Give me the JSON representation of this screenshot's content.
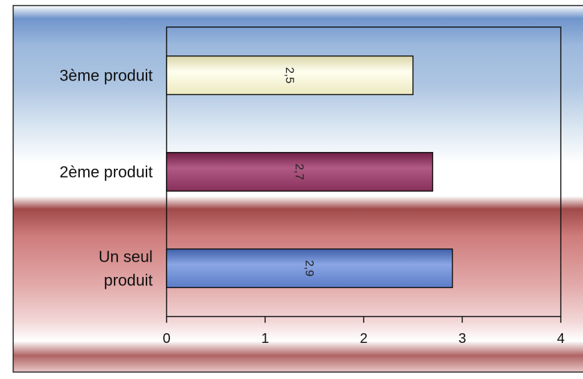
{
  "chart_data": {
    "type": "bar",
    "orientation": "horizontal",
    "categories": [
      "Un seul produit",
      "2ème produit",
      "3ème produit"
    ],
    "category_label_lines": [
      [
        "Un seul",
        "produit"
      ],
      [
        "2ème produit"
      ],
      [
        "3ème produit"
      ]
    ],
    "values": [
      2.9,
      2.7,
      2.5
    ],
    "value_labels": [
      "2,9",
      "2,7",
      "2,5"
    ],
    "bar_colors": [
      "#6f8ed8",
      "#993366",
      "#ffffcc"
    ],
    "xlim": [
      0,
      4
    ],
    "x_ticks": [
      0,
      1,
      2,
      3,
      4
    ],
    "x_tick_labels": [
      "0",
      "1",
      "2",
      "3",
      "4"
    ],
    "grid": false,
    "legend": "none",
    "title": "",
    "xlabel": "",
    "ylabel": ""
  }
}
